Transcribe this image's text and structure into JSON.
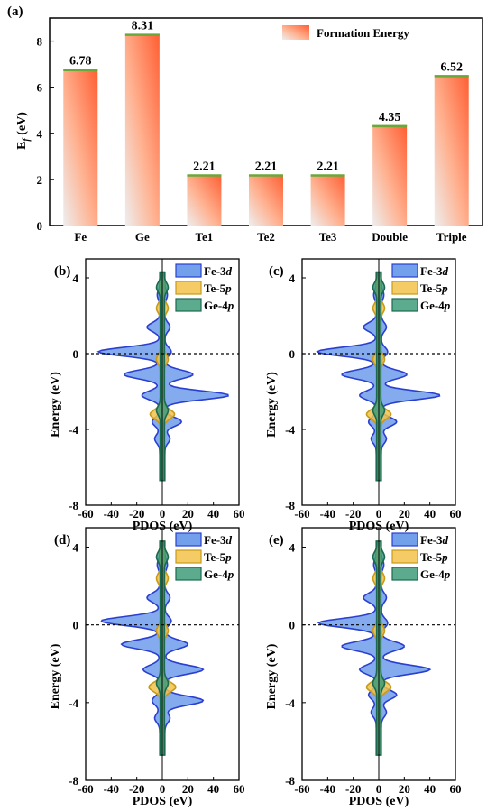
{
  "chart_data": [
    {
      "type": "bar",
      "panel_label": "(a)",
      "categories": [
        "Fe",
        "Ge",
        "Te1",
        "Te2",
        "Te3",
        "Double",
        "Triple"
      ],
      "values": [
        6.78,
        8.31,
        2.21,
        2.21,
        2.21,
        4.35,
        6.52
      ],
      "value_labels": [
        "6.78",
        "8.31",
        "2.21",
        "2.21",
        "2.21",
        "4.35",
        "6.52"
      ],
      "ylabel": "E_f (eV)",
      "ylabel_main": "E",
      "ylabel_sub": "f",
      "ylabel_unit": " (eV)",
      "ylim": [
        0,
        9
      ],
      "yticks": [
        0,
        2,
        4,
        6,
        8
      ],
      "legend": [
        "Formation Energy"
      ],
      "legend_position": "top-right",
      "colors": {
        "bar_top": "#ff5f33",
        "bar_bottom": "#eeeeee",
        "edge": "#6aa83a"
      }
    },
    {
      "type": "area",
      "panel_label": "(b)",
      "xlabel": "PDOS (eV)",
      "ylabel": "Energy (eV)",
      "xlim": [
        -60,
        60
      ],
      "ylim": [
        -8,
        5
      ],
      "xticks": [
        -60,
        -40,
        -20,
        0,
        20,
        40,
        60
      ],
      "yticks": [
        -8,
        -4,
        0,
        4
      ],
      "fermi_level": 0,
      "series": [
        {
          "name": "Fe-3d",
          "color": "#5b8fe8",
          "edge": "#2a3fd0",
          "peaks": [
            {
              "e": 3.1,
              "up": 2,
              "dn": 2
            },
            {
              "e": 1.4,
              "up": 4,
              "dn": 10
            },
            {
              "e": 0.1,
              "up": 5,
              "dn": 48
            },
            {
              "e": -1.1,
              "up": 22,
              "dn": 28
            },
            {
              "e": -2.2,
              "up": 50,
              "dn": 14
            },
            {
              "e": -3.6,
              "up": 13,
              "dn": 6
            },
            {
              "e": -4.5,
              "up": 4,
              "dn": 4
            }
          ]
        },
        {
          "name": "Te-5p",
          "color": "#f2c24a",
          "edge": "#c79a1a",
          "peaks": [
            {
              "e": 2.4,
              "up": 3,
              "dn": 3
            },
            {
              "e": -0.3,
              "up": 3,
              "dn": 3
            },
            {
              "e": -3.2,
              "up": 8,
              "dn": 8
            }
          ]
        },
        {
          "name": "Ge-4p",
          "color": "#3f9c7b",
          "edge": "#1b6a4f",
          "peaks": [
            {
              "e": 3.5,
              "up": 3,
              "dn": 3
            },
            {
              "e": -3.0,
              "up": 3,
              "dn": 3
            }
          ]
        }
      ]
    },
    {
      "type": "area",
      "panel_label": "(c)",
      "xlabel": "PDOS (eV)",
      "ylabel": "Energy (eV)",
      "xlim": [
        -60,
        60
      ],
      "ylim": [
        -8,
        5
      ],
      "xticks": [
        -60,
        -40,
        -20,
        0,
        20,
        40,
        60
      ],
      "yticks": [
        -8,
        -4,
        0,
        4
      ],
      "fermi_level": 0,
      "series": [
        {
          "name": "Fe-3d",
          "color": "#5b8fe8",
          "edge": "#2a3fd0",
          "peaks": [
            {
              "e": 3.1,
              "up": 2,
              "dn": 2
            },
            {
              "e": 1.4,
              "up": 4,
              "dn": 10
            },
            {
              "e": 0.1,
              "up": 5,
              "dn": 46
            },
            {
              "e": -1.1,
              "up": 20,
              "dn": 27
            },
            {
              "e": -2.2,
              "up": 46,
              "dn": 13
            },
            {
              "e": -3.6,
              "up": 12,
              "dn": 6
            },
            {
              "e": -4.5,
              "up": 4,
              "dn": 4
            }
          ]
        },
        {
          "name": "Te-5p",
          "color": "#f2c24a",
          "edge": "#c79a1a",
          "peaks": [
            {
              "e": 2.4,
              "up": 3,
              "dn": 3
            },
            {
              "e": -0.3,
              "up": 3,
              "dn": 3
            },
            {
              "e": -3.2,
              "up": 8,
              "dn": 8
            }
          ]
        },
        {
          "name": "Ge-4p",
          "color": "#3f9c7b",
          "edge": "#1b6a4f",
          "peaks": [
            {
              "e": 3.5,
              "up": 3,
              "dn": 3
            },
            {
              "e": -3.0,
              "up": 3,
              "dn": 3
            }
          ]
        }
      ]
    },
    {
      "type": "area",
      "panel_label": "(d)",
      "xlabel": "PDOS (eV)",
      "ylabel": "Energy (eV)",
      "xlim": [
        -60,
        60
      ],
      "ylim": [
        -8,
        5
      ],
      "xticks": [
        -60,
        -40,
        -20,
        0,
        20,
        40,
        60
      ],
      "yticks": [
        -8,
        -4,
        0,
        4
      ],
      "fermi_level": 0,
      "series": [
        {
          "name": "Fe-3d",
          "color": "#5b8fe8",
          "edge": "#2a3fd0",
          "peaks": [
            {
              "e": 3.1,
              "up": 2,
              "dn": 2
            },
            {
              "e": 1.4,
              "up": 4,
              "dn": 10
            },
            {
              "e": 0.2,
              "up": 5,
              "dn": 46
            },
            {
              "e": -1.0,
              "up": 18,
              "dn": 30
            },
            {
              "e": -2.3,
              "up": 30,
              "dn": 13
            },
            {
              "e": -3.9,
              "up": 30,
              "dn": 6
            },
            {
              "e": -4.8,
              "up": 4,
              "dn": 4
            }
          ]
        },
        {
          "name": "Te-5p",
          "color": "#f2c24a",
          "edge": "#c79a1a",
          "peaks": [
            {
              "e": 2.4,
              "up": 3,
              "dn": 3
            },
            {
              "e": -0.3,
              "up": 3,
              "dn": 3
            },
            {
              "e": -3.2,
              "up": 9,
              "dn": 9
            }
          ]
        },
        {
          "name": "Ge-4p",
          "color": "#3f9c7b",
          "edge": "#1b6a4f",
          "peaks": [
            {
              "e": 3.5,
              "up": 3,
              "dn": 3
            },
            {
              "e": -3.0,
              "up": 3,
              "dn": 3
            }
          ]
        }
      ]
    },
    {
      "type": "area",
      "panel_label": "(e)",
      "xlabel": "PDOS (eV)",
      "ylabel": "Energy (eV)",
      "xlim": [
        -60,
        60
      ],
      "ylim": [
        -8,
        5
      ],
      "xticks": [
        -60,
        -40,
        -20,
        0,
        20,
        40,
        60
      ],
      "yticks": [
        -8,
        -4,
        0,
        4
      ],
      "fermi_level": 0,
      "series": [
        {
          "name": "Fe-3d",
          "color": "#5b8fe8",
          "edge": "#2a3fd0",
          "peaks": [
            {
              "e": 3.1,
              "up": 2,
              "dn": 2
            },
            {
              "e": 1.4,
              "up": 4,
              "dn": 10
            },
            {
              "e": 0.1,
              "up": 5,
              "dn": 45
            },
            {
              "e": -1.1,
              "up": 18,
              "dn": 27
            },
            {
              "e": -2.3,
              "up": 38,
              "dn": 13
            },
            {
              "e": -3.6,
              "up": 12,
              "dn": 6
            },
            {
              "e": -4.5,
              "up": 4,
              "dn": 4
            }
          ]
        },
        {
          "name": "Te-5p",
          "color": "#f2c24a",
          "edge": "#c79a1a",
          "peaks": [
            {
              "e": 2.4,
              "up": 3,
              "dn": 3
            },
            {
              "e": -0.3,
              "up": 3,
              "dn": 3
            },
            {
              "e": -3.2,
              "up": 8,
              "dn": 8
            }
          ]
        },
        {
          "name": "Ge-4p",
          "color": "#3f9c7b",
          "edge": "#1b6a4f",
          "peaks": [
            {
              "e": 3.5,
              "up": 3,
              "dn": 3
            },
            {
              "e": -3.0,
              "up": 3,
              "dn": 3
            }
          ]
        }
      ]
    }
  ]
}
